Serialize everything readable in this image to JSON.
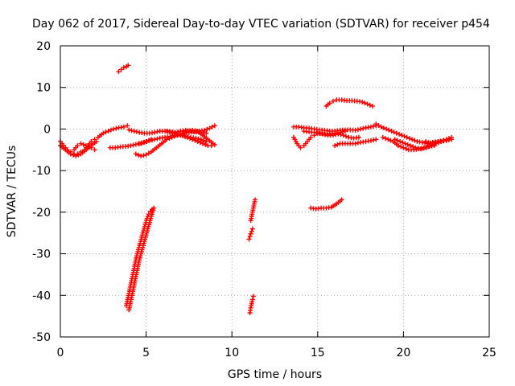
{
  "chart_data": {
    "type": "scatter",
    "title": "Day 062 of 2017, Sidereal Day-to-day VTEC variation (SDTVAR) for receiver p454",
    "xlabel": "GPS time / hours",
    "ylabel": "SDTVAR / TECUs",
    "xlim": [
      0,
      25
    ],
    "ylim": [
      -50,
      20
    ],
    "xticks": [
      0,
      5,
      10,
      15,
      20,
      25
    ],
    "yticks": [
      -50,
      -40,
      -30,
      -20,
      -10,
      0,
      10,
      20
    ],
    "grid": true,
    "legend": "none",
    "marker": "plus",
    "color": "#ff0000",
    "series": [
      {
        "x": [
          0,
          0.2,
          0.4,
          0.6,
          0.8,
          1.0,
          1.2,
          1.4,
          1.6,
          1.8,
          2.0,
          2.2,
          2.5,
          2.8,
          3.1,
          3.4,
          3.7,
          3.9
        ],
        "y": [
          -3,
          -4,
          -5,
          -5.5,
          -6,
          -6,
          -5.5,
          -5,
          -4,
          -3,
          -2.5,
          -2,
          -1,
          -0.5,
          0,
          0.3,
          0.5,
          0.8
        ]
      },
      {
        "x": [
          0,
          0.3,
          0.6,
          0.9,
          1.2,
          1.5,
          1.8,
          2.1
        ],
        "y": [
          -4,
          -5,
          -6,
          -6.5,
          -6,
          -5,
          -4,
          -3
        ]
      },
      {
        "x": [
          0.8,
          1.0,
          1.2,
          1.5,
          1.8,
          2.0
        ],
        "y": [
          -5,
          -4,
          -3.5,
          -4,
          -4.5,
          -5
        ]
      },
      {
        "x": [
          2.9,
          3.2,
          3.5,
          3.8,
          4.1,
          4.4,
          4.7,
          5.0,
          5.3
        ],
        "y": [
          -4.5,
          -4.5,
          -4.3,
          -4.2,
          -4,
          -3.7,
          -3.5,
          -3,
          -2.5
        ]
      },
      {
        "x": [
          3.4,
          3.55,
          3.7,
          3.85,
          3.95
        ],
        "y": [
          13.8,
          14.3,
          14.8,
          15.0,
          15.3
        ]
      },
      {
        "x": [
          4.0,
          4.1,
          4.2,
          4.3,
          4.4,
          4.5,
          4.6,
          4.7,
          4.8,
          4.9,
          5.0,
          5.1,
          5.2,
          5.3,
          5.45
        ],
        "y": [
          -43.5,
          -41.5,
          -39.5,
          -37.5,
          -35.5,
          -33.5,
          -31.5,
          -30,
          -28.5,
          -27,
          -25.5,
          -24,
          -22.5,
          -21,
          -19
        ]
      },
      {
        "x": [
          3.85,
          3.95,
          4.05,
          4.15,
          4.25,
          4.35,
          4.45,
          4.55,
          4.65,
          4.75,
          4.85,
          4.95,
          5.05,
          5.15,
          5.25,
          5.35
        ],
        "y": [
          -42.5,
          -40.5,
          -38.5,
          -36.5,
          -34.5,
          -32.5,
          -30.5,
          -29,
          -27.5,
          -26,
          -24.5,
          -23,
          -21.5,
          -20.5,
          -19.8,
          -19.3
        ]
      },
      {
        "x": [
          4.0,
          4.3,
          4.6,
          4.9,
          5.2,
          5.5,
          5.8,
          6.1,
          6.4,
          6.7,
          7.0,
          7.3,
          7.6,
          7.9,
          8.2,
          8.5
        ],
        "y": [
          -0.2,
          -0.5,
          -0.8,
          -1,
          -1,
          -0.8,
          -0.5,
          -0.5,
          -0.7,
          -0.8,
          -0.5,
          -0.3,
          -0.5,
          -0.7,
          -0.8,
          -1
        ]
      },
      {
        "x": [
          4.6,
          4.9,
          5.2,
          5.5,
          5.8,
          6.1,
          6.4,
          6.7,
          7.0,
          7.3,
          7.6,
          7.9,
          8.2,
          8.5
        ],
        "y": [
          -3.5,
          -3.2,
          -2.8,
          -2.5,
          -2.2,
          -2,
          -1.8,
          -1.5,
          -1.5,
          -1.8,
          -2,
          -2.2,
          -2.5,
          -3
        ]
      },
      {
        "x": [
          4.4,
          4.7,
          5.0,
          5.3,
          5.6,
          5.9,
          6.2,
          6.5,
          6.8,
          7.1,
          7.4,
          7.7,
          8.0,
          8.3,
          8.6,
          8.9
        ],
        "y": [
          -6,
          -6.5,
          -6.2,
          -5.5,
          -4.5,
          -3.5,
          -2.5,
          -2,
          -1.5,
          -1,
          -0.5,
          -0.3,
          -0.5,
          -1.5,
          -2.5,
          -3.5
        ]
      },
      {
        "x": [
          6.2,
          6.5,
          6.8,
          7.1,
          7.4,
          7.7,
          8.0,
          8.3,
          8.6,
          8.8,
          9.0
        ],
        "y": [
          -0.5,
          -0.8,
          -1.2,
          -1.5,
          -2,
          -2.5,
          -3,
          -3.5,
          -4,
          -4,
          -3.8
        ]
      },
      {
        "x": [
          7.2,
          7.5,
          7.8,
          8.1,
          8.4,
          8.7,
          9.0
        ],
        "y": [
          -1,
          -0.8,
          -0.7,
          -0.5,
          -0.3,
          0.2,
          0.8
        ]
      },
      {
        "x": [
          11.05,
          11.1,
          11.15,
          11.2,
          11.25
        ],
        "y": [
          -44.2,
          -43,
          -42,
          -41,
          -40.2
        ]
      },
      {
        "x": [
          11.0,
          11.05,
          11.1,
          11.15,
          11.2
        ],
        "y": [
          -26.5,
          -25.8,
          -25.2,
          -24.6,
          -24
        ]
      },
      {
        "x": [
          11.1,
          11.15,
          11.2,
          11.25,
          11.3,
          11.35
        ],
        "y": [
          -22,
          -21,
          -20,
          -19,
          -18,
          -17
        ]
      },
      {
        "x": [
          13.6,
          13.9,
          14.2,
          14.5,
          14.8,
          15.1,
          15.4,
          15.7,
          16.0,
          16.3,
          16.6,
          16.9,
          17.2,
          17.5,
          17.8,
          18.1,
          18.4
        ],
        "y": [
          0.5,
          0.5,
          0.3,
          0.2,
          0,
          -0.2,
          -0.3,
          -0.5,
          -0.5,
          -0.3,
          -0.2,
          -0.2,
          -0.3,
          0,
          0.3,
          0.5,
          0.8
        ]
      },
      {
        "x": [
          13.6,
          13.8,
          14.0,
          14.2,
          14.4,
          14.6,
          14.8,
          15.0
        ],
        "y": [
          -2,
          -3.5,
          -4.5,
          -4,
          -3,
          -2,
          -1.5,
          -1
        ]
      },
      {
        "x": [
          14.2,
          14.5,
          14.8,
          15.1,
          15.4,
          15.7,
          16.0,
          16.3,
          16.6
        ],
        "y": [
          -0.5,
          -0.7,
          -0.8,
          -1,
          -1.2,
          -1.2,
          -1,
          -0.8,
          -0.5
        ]
      },
      {
        "x": [
          15.5,
          15.7,
          15.9,
          16.1,
          16.4,
          16.7,
          17.0,
          17.3,
          17.6,
          17.9,
          18.2
        ],
        "y": [
          5.5,
          6.2,
          6.7,
          7,
          7,
          6.8,
          6.8,
          6.7,
          6.5,
          6,
          5.5
        ]
      },
      {
        "x": [
          15.0,
          15.3,
          15.6,
          15.9,
          16.2,
          16.5,
          16.8,
          17.1,
          17.4
        ],
        "y": [
          -1,
          -1.2,
          -1.5,
          -1.5,
          -1.2,
          -1.5,
          -2,
          -2.2,
          -2
        ]
      },
      {
        "x": [
          16.0,
          16.3,
          16.6,
          16.9,
          17.2,
          17.5,
          17.8,
          18.1,
          18.4
        ],
        "y": [
          -4,
          -3.5,
          -3.5,
          -3.5,
          -3.5,
          -3.2,
          -3,
          -2.8,
          -2.5
        ]
      },
      {
        "x": [
          14.6,
          14.9,
          15.2,
          15.5,
          15.8,
          16.1,
          16.4
        ],
        "y": [
          -19,
          -19.2,
          -19,
          -19,
          -18.8,
          -18,
          -17
        ]
      },
      {
        "x": [
          18.4,
          18.7,
          19.0,
          19.3,
          19.6,
          19.9,
          20.2,
          20.5,
          20.8,
          21.1,
          21.4,
          21.7,
          22.0,
          22.3
        ],
        "y": [
          1.2,
          0.5,
          0,
          -0.5,
          -1,
          -1.5,
          -2,
          -2.5,
          -3,
          -3.2,
          -3.5,
          -3.2,
          -3,
          -2.8
        ]
      },
      {
        "x": [
          18.8,
          19.1,
          19.4,
          19.7,
          20.0,
          20.3,
          20.6,
          20.9,
          21.2,
          21.5,
          21.8
        ],
        "y": [
          -2,
          -2.5,
          -3,
          -4,
          -4.5,
          -5,
          -5,
          -4.8,
          -4.5,
          -4.2,
          -4
        ]
      },
      {
        "x": [
          19.5,
          19.8,
          20.1,
          20.4,
          20.7,
          21.0,
          21.3,
          21.6,
          21.9,
          22.2,
          22.5,
          22.8
        ],
        "y": [
          -2.5,
          -3,
          -3.5,
          -4,
          -4.5,
          -4.8,
          -4.5,
          -4,
          -3.5,
          -3,
          -2.5,
          -2
        ]
      },
      {
        "x": [
          21.3,
          21.6,
          21.9,
          22.2,
          22.5,
          22.8
        ],
        "y": [
          -3,
          -3.5,
          -3.2,
          -3,
          -2.8,
          -2.5
        ]
      }
    ]
  }
}
